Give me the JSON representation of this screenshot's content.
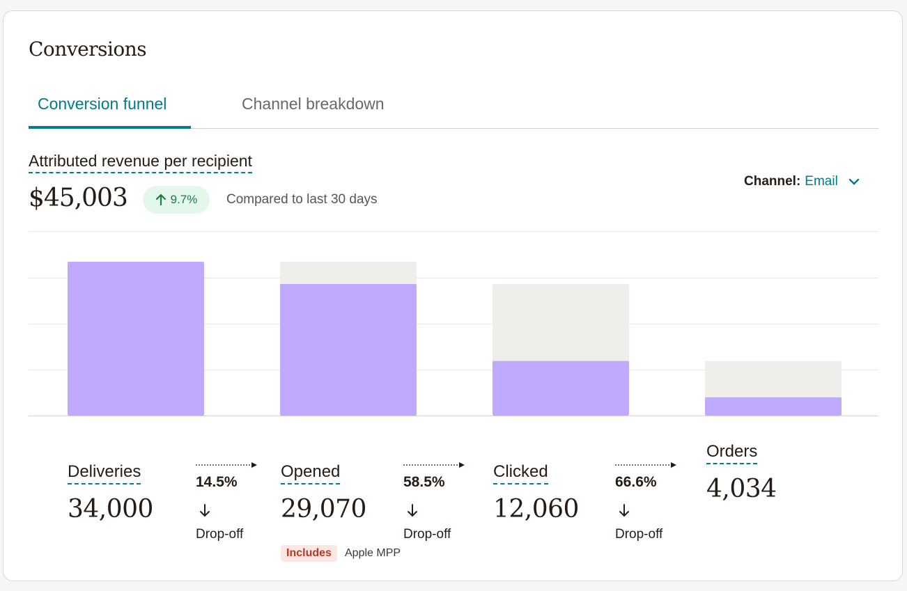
{
  "card": {
    "title": "Conversions",
    "tabs": [
      {
        "label": "Conversion funnel",
        "active": true
      },
      {
        "label": "Channel breakdown",
        "active": false
      }
    ]
  },
  "metric": {
    "label": "Attributed revenue per recipient",
    "value": "$45,003",
    "change": "9.7%",
    "change_direction": "up",
    "compare_text": "Compared to last 30 days"
  },
  "channel": {
    "label": "Channel:",
    "value": "Email"
  },
  "colors": {
    "accent": "#007c89",
    "bar_fill": "#c0aafd",
    "bar_total": "#efeeea",
    "positive": "#1f7a47"
  },
  "funnel": {
    "stages": [
      {
        "label": "Deliveries",
        "value": "34,000"
      },
      {
        "label": "Opened",
        "value": "29,070"
      },
      {
        "label": "Clicked",
        "value": "12,060"
      },
      {
        "label": "Orders",
        "value": "4,034"
      }
    ],
    "dropoffs": [
      {
        "pct": "14.5%",
        "label": "Drop-off"
      },
      {
        "pct": "58.5%",
        "label": "Drop-off"
      },
      {
        "pct": "66.6%",
        "label": "Drop-off"
      }
    ],
    "note": {
      "badge": "Includes",
      "text": "Apple MPP"
    }
  },
  "chart_data": {
    "type": "bar",
    "categories": [
      "Deliveries",
      "Opened",
      "Clicked",
      "Orders"
    ],
    "series": [
      {
        "values": [
          34000,
          29070,
          12060,
          4034
        ]
      },
      {
        "values": [
          34000,
          34000,
          29070,
          12060
        ]
      }
    ],
    "ylim": [
      0,
      34000
    ],
    "grid": true
  }
}
